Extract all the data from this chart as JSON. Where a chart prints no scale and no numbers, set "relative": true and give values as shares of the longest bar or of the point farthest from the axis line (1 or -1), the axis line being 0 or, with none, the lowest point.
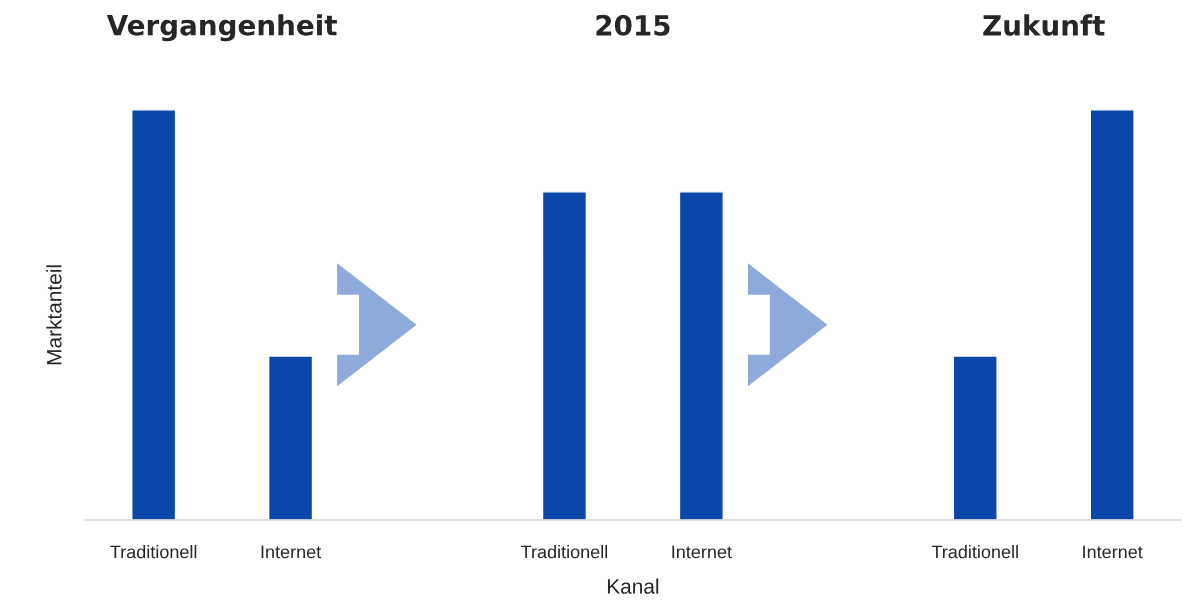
{
  "chart_data": {
    "type": "bar",
    "relative": true,
    "categories": [
      "Traditionell",
      "Internet",
      null,
      "Traditionell",
      "Internet",
      null,
      "Traditionell",
      "Internet"
    ],
    "values": [
      1,
      0.4,
      null,
      0.8,
      0.8,
      null,
      0.4,
      1
    ],
    "color": "#0a47a9",
    "xlabel": "Kanal",
    "ylabel": "Marktanteil",
    "annotations": [
      "Vergangenheit",
      "2015",
      "Zukunft"
    ]
  }
}
